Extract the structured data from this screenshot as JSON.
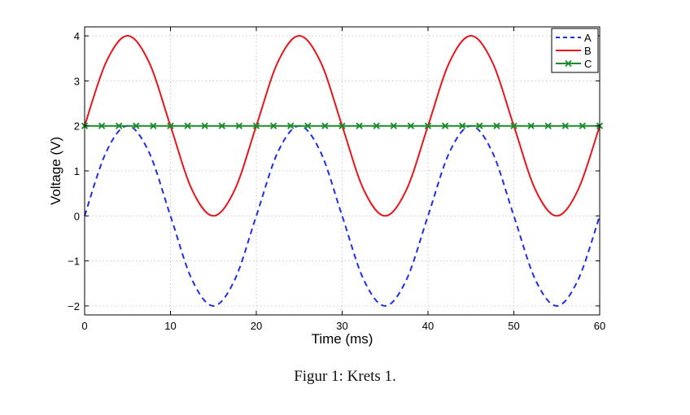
{
  "chart_data": {
    "type": "line",
    "title": "",
    "xlabel": "Time (ms)",
    "ylabel": "Voltage (V)",
    "xlim": [
      0,
      60
    ],
    "ylim": [
      -2.2,
      4.2
    ],
    "xticks": [
      0,
      10,
      20,
      30,
      40,
      50,
      60
    ],
    "xtick_labels": [
      "0",
      "10",
      "20",
      "30",
      "40",
      "50",
      "60"
    ],
    "yticks": [
      -2,
      -1,
      0,
      1,
      2,
      3,
      4
    ],
    "ytick_labels": [
      "−2",
      "−1",
      "0",
      "1",
      "2",
      "3",
      "4"
    ],
    "grid": true,
    "legend_position": "top-right",
    "x": [
      0,
      2.5,
      5,
      7.5,
      10,
      12.5,
      15,
      17.5,
      20,
      22.5,
      25,
      27.5,
      30,
      32.5,
      35,
      37.5,
      40,
      42.5,
      45,
      47.5,
      50,
      52.5,
      55,
      57.5,
      60
    ],
    "series": [
      {
        "name": "A",
        "color": "#1f2fe8",
        "style": "dashed",
        "marker": "none",
        "values": [
          0,
          1.414,
          2,
          1.414,
          0,
          -1.414,
          -2,
          -1.414,
          0,
          1.414,
          2,
          1.414,
          0,
          -1.414,
          -2,
          -1.414,
          0,
          1.414,
          2,
          1.414,
          0,
          -1.414,
          -2,
          -1.414,
          0
        ]
      },
      {
        "name": "B",
        "color": "#e8161c",
        "style": "solid",
        "marker": "none",
        "values": [
          2,
          3.414,
          4,
          3.414,
          2,
          0.586,
          0,
          0.586,
          2,
          3.414,
          4,
          3.414,
          2,
          0.586,
          0,
          0.586,
          2,
          3.414,
          4,
          3.414,
          2,
          0.586,
          0,
          0.586,
          2
        ]
      },
      {
        "name": "C",
        "color": "#1a8a2a",
        "style": "solid",
        "marker": "x",
        "marker_x": [
          0,
          2,
          4,
          6,
          8,
          10,
          12,
          14,
          16,
          18,
          20,
          22,
          24,
          26,
          28,
          30,
          32,
          34,
          36,
          38,
          40,
          42,
          44,
          46,
          48,
          50,
          52,
          54,
          56,
          58,
          60
        ],
        "values": [
          2,
          2,
          2,
          2,
          2,
          2,
          2,
          2,
          2,
          2,
          2,
          2,
          2,
          2,
          2,
          2,
          2,
          2,
          2,
          2,
          2,
          2,
          2,
          2,
          2
        ]
      }
    ]
  },
  "caption": "Figur 1: Krets 1."
}
